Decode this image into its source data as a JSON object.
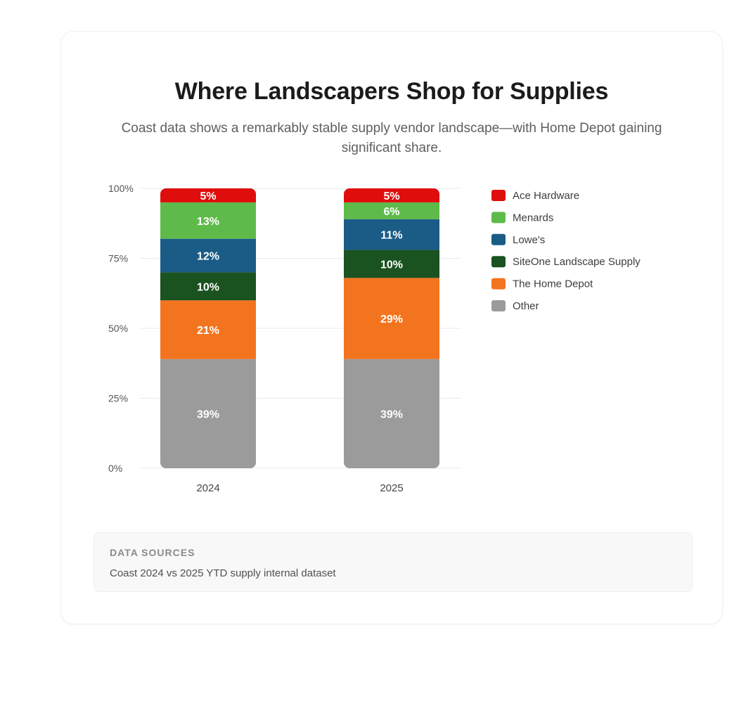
{
  "header": {
    "title": "Where Landscapers Shop for Supplies",
    "subtitle": "Coast data shows a remarkably stable supply vendor landscape—with Home Depot gaining significant share."
  },
  "chart_data": {
    "type": "bar",
    "stacked": true,
    "categories": [
      "2024",
      "2025"
    ],
    "y_ticks": [
      "0%",
      "25%",
      "50%",
      "75%",
      "100%"
    ],
    "ylim": [
      0,
      100
    ],
    "grid": true,
    "legend_position": "right",
    "series": [
      {
        "name": "Other",
        "color": "#9b9b9b",
        "values": [
          39,
          39
        ],
        "labels": [
          "39%",
          "39%"
        ]
      },
      {
        "name": "The Home Depot",
        "color": "#f3741f",
        "values": [
          21,
          29
        ],
        "labels": [
          "21%",
          "29%"
        ]
      },
      {
        "name": "SiteOne Landscape Supply",
        "color": "#1a5220",
        "values": [
          10,
          10
        ],
        "labels": [
          "10%",
          "10%"
        ]
      },
      {
        "name": "Lowe's",
        "color": "#1b5c87",
        "values": [
          12,
          11
        ],
        "labels": [
          "12%",
          "11%"
        ]
      },
      {
        "name": "Menards",
        "color": "#5ebb4a",
        "values": [
          13,
          6
        ],
        "labels": [
          "13%",
          "6%"
        ]
      },
      {
        "name": "Ace Hardware",
        "color": "#e00d0d",
        "values": [
          5,
          5
        ],
        "labels": [
          "5%",
          "5%"
        ]
      }
    ],
    "legend_order": [
      "Ace Hardware",
      "Menards",
      "Lowe's",
      "SiteOne Landscape Supply",
      "The Home Depot",
      "Other"
    ]
  },
  "sources": {
    "heading": "Data Sources",
    "text": "Coast 2024 vs 2025 YTD supply internal dataset"
  }
}
